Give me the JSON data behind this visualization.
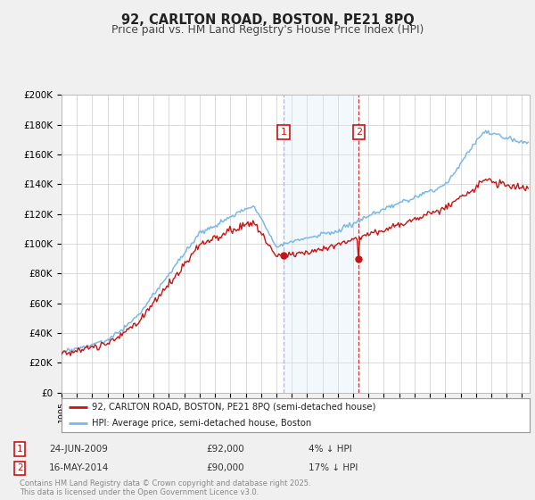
{
  "title": "92, CARLTON ROAD, BOSTON, PE21 8PQ",
  "subtitle": "Price paid vs. HM Land Registry's House Price Index (HPI)",
  "ylim": [
    0,
    200000
  ],
  "yticks": [
    0,
    20000,
    40000,
    60000,
    80000,
    100000,
    120000,
    140000,
    160000,
    180000,
    200000
  ],
  "ytick_labels": [
    "£0",
    "£20K",
    "£40K",
    "£60K",
    "£80K",
    "£100K",
    "£120K",
    "£140K",
    "£160K",
    "£180K",
    "£200K"
  ],
  "hpi_color": "#7ab8e8",
  "price_color": "#cc1111",
  "shade_color": "#daeaf8",
  "sale1_t": 2009.478,
  "sale2_t": 2014.369,
  "sale1_price": 92000,
  "sale2_price": 90000,
  "sale1_date": "24-JUN-2009",
  "sale2_date": "16-MAY-2014",
  "sale1_label": "4% ↓ HPI",
  "sale2_label": "17% ↓ HPI",
  "legend_label1": "92, CARLTON ROAD, BOSTON, PE21 8PQ (semi-detached house)",
  "legend_label2": "HPI: Average price, semi-detached house, Boston",
  "footer": "Contains HM Land Registry data © Crown copyright and database right 2025.\nThis data is licensed under the Open Government Licence v3.0.",
  "background_color": "#f0f0f0",
  "plot_bg_color": "#ffffff",
  "grid_color": "#cccccc"
}
